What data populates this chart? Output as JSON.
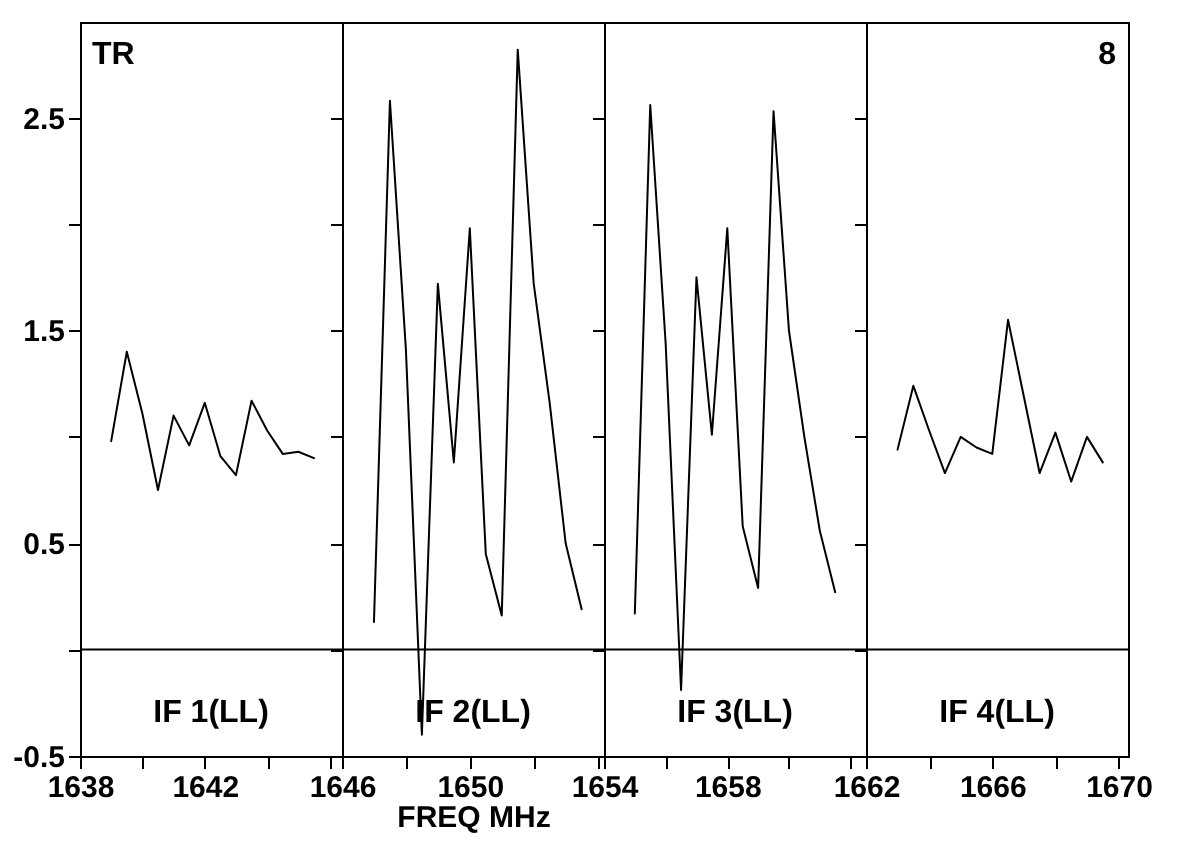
{
  "chart_data": [
    {
      "type": "line",
      "x": [
        1639.0,
        1639.5,
        1640.0,
        1640.5,
        1641.0,
        1641.5,
        1642.0,
        1642.5,
        1643.0,
        1643.5,
        1644.0,
        1644.5,
        1645.0,
        1645.5
      ],
      "series": [
        {
          "color": "#000000",
          "values": [
            0.98,
            1.4,
            1.11,
            0.75,
            1.1,
            0.96,
            1.16,
            0.91,
            0.82,
            1.17,
            1.03,
            0.92,
            0.93,
            0.9
          ]
        }
      ],
      "xlim": [
        1638,
        1646.4
      ],
      "xticks": [
        1638,
        {
          "value": 1640,
          "label": null
        },
        1642,
        {
          "value": 1644,
          "label": null
        },
        {
          "value": 1646,
          "label": null
        }
      ],
      "ylim": [
        -0.5,
        2.95
      ],
      "yticks": [
        -0.5,
        {
          "value": 0,
          "label": null
        },
        0.5,
        {
          "value": 1,
          "label": null
        },
        1.5,
        {
          "value": 2,
          "label": null
        },
        2.5
      ],
      "ref_lines": [
        {
          "axis": "y",
          "value": 0,
          "color": "#000000"
        }
      ],
      "annotations": [
        "TR",
        "IF 1(LL)"
      ],
      "grid": false,
      "marker": "none",
      "line_style": "solid"
    },
    {
      "type": "line",
      "x": [
        1647.0,
        1647.5,
        1648.0,
        1648.5,
        1649.0,
        1649.5,
        1650.0,
        1650.5,
        1651.0,
        1651.5,
        1652.0,
        1652.5,
        1653.0,
        1653.5
      ],
      "series": [
        {
          "color": "#000000",
          "values": [
            0.13,
            2.58,
            1.41,
            -0.4,
            1.72,
            0.88,
            1.98,
            0.45,
            0.16,
            2.82,
            1.72,
            1.16,
            0.5,
            0.19
          ]
        }
      ],
      "xlim": [
        1646,
        1654.2
      ],
      "xticks": [
        1646,
        {
          "value": 1648,
          "label": null
        },
        1650,
        {
          "value": 1652,
          "label": null
        },
        {
          "value": 1654,
          "label": null
        }
      ],
      "ylim": [
        -0.5,
        2.95
      ],
      "yticks": [
        -0.5,
        {
          "value": 0,
          "label": null
        },
        0.5,
        {
          "value": 1,
          "label": null
        },
        1.5,
        {
          "value": 2,
          "label": null
        },
        2.5
      ],
      "xlabel": "FREQ MHz",
      "tick_labels": "x",
      "ref_lines": [
        {
          "axis": "y",
          "value": 0,
          "color": "#000000"
        }
      ],
      "annotations": [
        "IF 2(LL)"
      ],
      "grid": false,
      "marker": "none",
      "line_style": "solid"
    },
    {
      "type": "line",
      "x": [
        1655.0,
        1655.5,
        1656.0,
        1656.5,
        1657.0,
        1657.5,
        1658.0,
        1658.5,
        1659.0,
        1659.5,
        1660.0,
        1660.5,
        1661.0,
        1661.5
      ],
      "series": [
        {
          "color": "#000000",
          "values": [
            0.17,
            2.56,
            1.44,
            -0.19,
            1.75,
            1.01,
            1.98,
            0.58,
            0.29,
            2.53,
            1.5,
            1.0,
            0.56,
            0.27
          ]
        }
      ],
      "xlim": [
        1654,
        1662.5
      ],
      "xticks": [
        1654,
        {
          "value": 1656,
          "label": null
        },
        1658,
        {
          "value": 1660,
          "label": null
        },
        {
          "value": 1662,
          "label": null
        }
      ],
      "ylim": [
        -0.5,
        2.95
      ],
      "yticks": [
        -0.5,
        {
          "value": 0,
          "label": null
        },
        0.5,
        {
          "value": 1,
          "label": null
        },
        1.5,
        {
          "value": 2,
          "label": null
        },
        2.5
      ],
      "tick_labels": "x",
      "ref_lines": [
        {
          "axis": "y",
          "value": 0,
          "color": "#000000"
        }
      ],
      "annotations": [
        "IF 3(LL)"
      ],
      "grid": false,
      "marker": "none",
      "line_style": "solid"
    },
    {
      "type": "line",
      "x": [
        1663.0,
        1663.5,
        1664.0,
        1664.5,
        1665.0,
        1665.5,
        1666.0,
        1666.5,
        1667.0,
        1667.5,
        1668.0,
        1668.5,
        1669.0,
        1669.5
      ],
      "series": [
        {
          "color": "#000000",
          "values": [
            0.94,
            1.24,
            1.03,
            0.83,
            1.0,
            0.95,
            0.92,
            1.55,
            1.19,
            0.83,
            1.02,
            0.79,
            1.0,
            0.88
          ]
        }
      ],
      "xlim": [
        1662,
        1670.3
      ],
      "xticks": [
        1662,
        {
          "value": 1664,
          "label": null
        },
        1666,
        {
          "value": 1668,
          "label": null
        },
        1670
      ],
      "ylim": [
        -0.5,
        2.95
      ],
      "yticks": [
        -0.5,
        {
          "value": 0,
          "label": null
        },
        0.5,
        {
          "value": 1,
          "label": null
        },
        1.5,
        {
          "value": 2,
          "label": null
        },
        2.5
      ],
      "tick_labels": "x",
      "ref_lines": [
        {
          "axis": "y",
          "value": 0,
          "color": "#000000"
        }
      ],
      "annotations": [
        "8",
        "IF 4(LL)"
      ],
      "grid": false,
      "marker": "none",
      "line_style": "solid"
    }
  ]
}
